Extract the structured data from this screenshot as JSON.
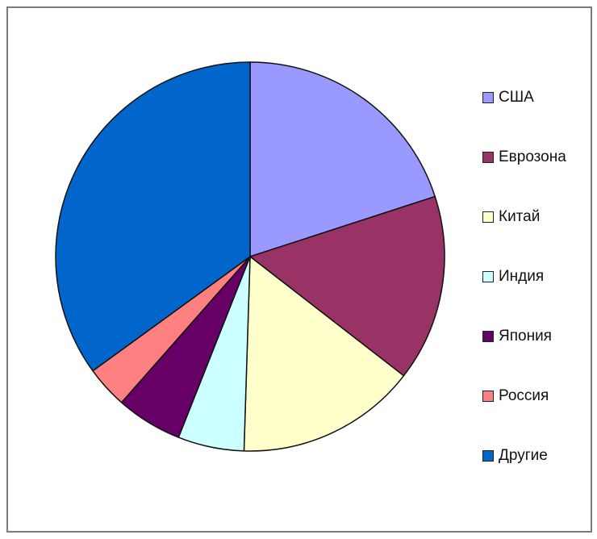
{
  "chart_data": {
    "type": "pie",
    "title": "",
    "legend_position": "right",
    "slices": [
      {
        "label": "США",
        "value": 20.0,
        "color": "#9999ff"
      },
      {
        "label": "Еврозона",
        "value": 15.5,
        "color": "#993366"
      },
      {
        "label": "Китай",
        "value": 15.0,
        "color": "#ffffcc"
      },
      {
        "label": "Индия",
        "value": 5.5,
        "color": "#ccffff"
      },
      {
        "label": "Япония",
        "value": 5.5,
        "color": "#660066"
      },
      {
        "label": "Россия",
        "value": 3.5,
        "color": "#ff8080"
      },
      {
        "label": "Другие",
        "value": 35.0,
        "color": "#0066cc"
      }
    ]
  }
}
